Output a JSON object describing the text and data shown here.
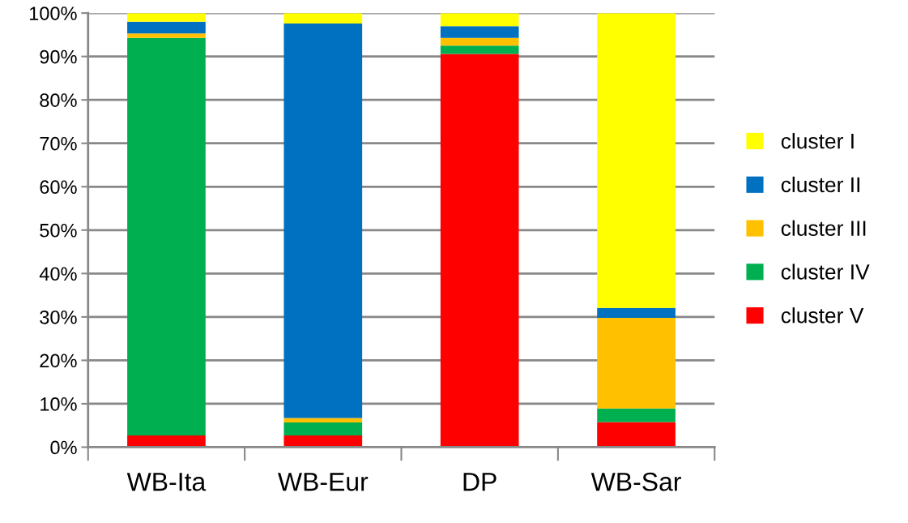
{
  "chart_data": {
    "type": "bar",
    "stacked": true,
    "categories": [
      "WB-Ita",
      "WB-Eur",
      "DP",
      "WB-Sar"
    ],
    "series": [
      {
        "name": "cluster V",
        "color": "#ff0000",
        "values": [
          2.7,
          2.7,
          90.6,
          5.8
        ]
      },
      {
        "name": "cluster IV",
        "color": "#00b050",
        "values": [
          91.6,
          3.0,
          1.9,
          3.1
        ]
      },
      {
        "name": "cluster III",
        "color": "#ffc000",
        "values": [
          1.0,
          1.0,
          1.8,
          20.9
        ]
      },
      {
        "name": "cluster II",
        "color": "#0070c0",
        "values": [
          2.7,
          90.9,
          2.7,
          2.3
        ]
      },
      {
        "name": "cluster I",
        "color": "#ffff00",
        "values": [
          2.0,
          2.4,
          3.0,
          67.9
        ]
      }
    ],
    "ylim": [
      0,
      100
    ],
    "yticks": [
      {
        "value": 0,
        "label": "0%"
      },
      {
        "value": 10,
        "label": "10%"
      },
      {
        "value": 20,
        "label": "20%"
      },
      {
        "value": 30,
        "label": "30%"
      },
      {
        "value": 40,
        "label": "40%"
      },
      {
        "value": 50,
        "label": "50%"
      },
      {
        "value": 60,
        "label": "60%"
      },
      {
        "value": 70,
        "label": "70%"
      },
      {
        "value": 80,
        "label": "80%"
      },
      {
        "value": 90,
        "label": "90%"
      },
      {
        "value": 100,
        "label": "100%"
      }
    ],
    "grid": "y",
    "legend": "right"
  }
}
